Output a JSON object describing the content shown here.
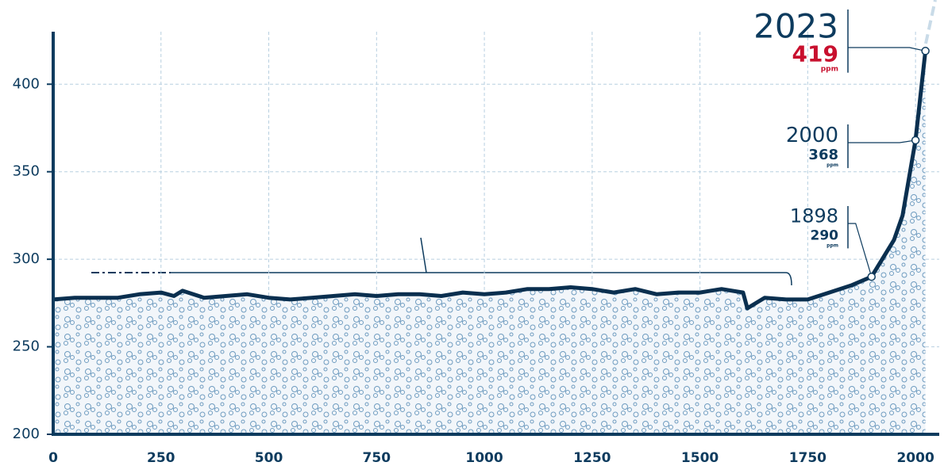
{
  "chart_data": {
    "type": "line",
    "x": [
      0,
      50,
      100,
      150,
      200,
      250,
      280,
      300,
      350,
      400,
      450,
      500,
      550,
      600,
      650,
      700,
      750,
      800,
      850,
      900,
      950,
      1000,
      1050,
      1100,
      1150,
      1200,
      1250,
      1300,
      1350,
      1400,
      1450,
      1500,
      1550,
      1600,
      1610,
      1650,
      1700,
      1750,
      1800,
      1850,
      1898,
      1950,
      1970,
      2000,
      2023
    ],
    "values": [
      277,
      278,
      278,
      278,
      280,
      281,
      279,
      282,
      278,
      279,
      280,
      278,
      277,
      278,
      279,
      280,
      279,
      280,
      280,
      279,
      281,
      280,
      281,
      283,
      283,
      284,
      283,
      281,
      283,
      280,
      281,
      281,
      283,
      281,
      272,
      278,
      277,
      277,
      281,
      285,
      290,
      311,
      325,
      368,
      419
    ],
    "color": "#0a2f4f",
    "xlim": [
      0,
      2055
    ],
    "ylim": [
      200,
      430
    ],
    "xticks": [
      0,
      250,
      500,
      750,
      1000,
      1250,
      1500,
      1750,
      2000
    ],
    "yticks": [
      200,
      250,
      300,
      350,
      400
    ],
    "grid": true,
    "annotations": [
      {
        "year": 2023,
        "value": 419,
        "unit": "ppm",
        "color": "#c8102e"
      },
      {
        "year": 2000,
        "value": 368,
        "unit": "ppm",
        "color": "#0d3b5e"
      },
      {
        "year": 1898,
        "value": 290,
        "unit": "ppm",
        "color": "#0d3b5e"
      }
    ]
  }
}
